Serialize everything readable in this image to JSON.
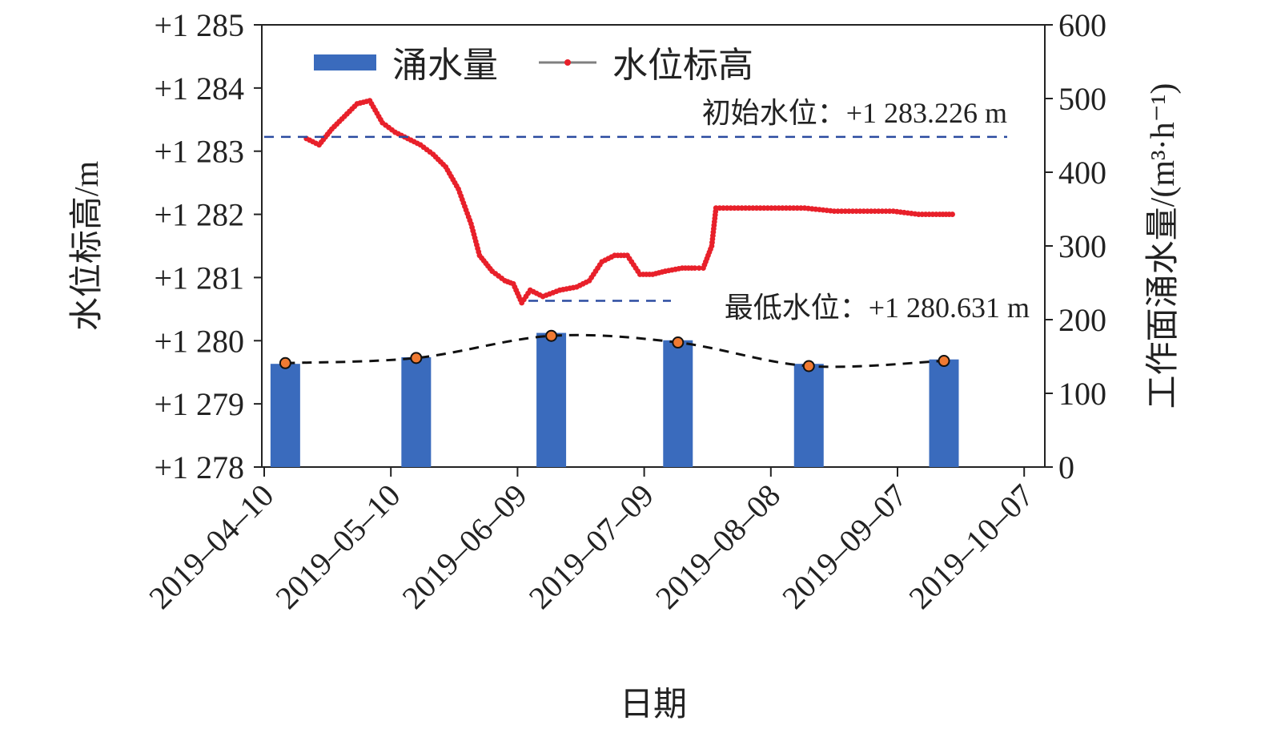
{
  "chart_data": {
    "type": "bar+line",
    "xlabel": "日期",
    "ylabel_left": "水位标高/m",
    "ylabel_right": "工作面涌水量/(m³·h⁻¹)",
    "x_ticks": [
      "2019–04–10",
      "2019–05–10",
      "2019–06–09",
      "2019–07–09",
      "2019–08–08",
      "2019–09–07",
      "2019–10–07"
    ],
    "y_left": {
      "ticks": [
        "+1 278",
        "+1 279",
        "+1 280",
        "+1 281",
        "+1 282",
        "+1 283",
        "+1 284",
        "+1 285"
      ],
      "lim": [
        1278,
        1285
      ]
    },
    "y_right": {
      "ticks": [
        "0",
        "100",
        "200",
        "300",
        "400",
        "500",
        "600"
      ],
      "lim": [
        0,
        600
      ]
    },
    "legend": [
      {
        "name": "涌水量",
        "color": "#3a6bbd"
      },
      {
        "name": "水位标高",
        "color": "#e8202a"
      }
    ],
    "bars": {
      "name": "涌水量",
      "color": "#3a6bbd",
      "x_days": [
        5,
        36,
        68,
        98,
        129,
        161
      ],
      "values": [
        140,
        149,
        182,
        172,
        140,
        146
      ]
    },
    "flow_trend_values": [
      141,
      148,
      178,
      169,
      137,
      144
    ],
    "water_level": {
      "name": "水位标高",
      "color": "#e8202a",
      "points": [
        [
          10,
          1283.2
        ],
        [
          13,
          1283.1
        ],
        [
          16,
          1283.35
        ],
        [
          19,
          1283.55
        ],
        [
          22,
          1283.75
        ],
        [
          25,
          1283.8
        ],
        [
          28,
          1283.45
        ],
        [
          31,
          1283.3
        ],
        [
          34,
          1283.2
        ],
        [
          37,
          1283.1
        ],
        [
          40,
          1282.95
        ],
        [
          43,
          1282.75
        ],
        [
          46,
          1282.4
        ],
        [
          49,
          1281.85
        ],
        [
          51,
          1281.35
        ],
        [
          54,
          1281.1
        ],
        [
          57,
          1280.95
        ],
        [
          59,
          1280.9
        ],
        [
          61,
          1280.6
        ],
        [
          63,
          1280.8
        ],
        [
          66,
          1280.7
        ],
        [
          70,
          1280.8
        ],
        [
          74,
          1280.85
        ],
        [
          77,
          1280.95
        ],
        [
          80,
          1281.25
        ],
        [
          83,
          1281.35
        ],
        [
          86,
          1281.35
        ],
        [
          89,
          1281.05
        ],
        [
          92,
          1281.05
        ],
        [
          95,
          1281.1
        ],
        [
          99,
          1281.15
        ],
        [
          102,
          1281.15
        ],
        [
          104,
          1281.15
        ],
        [
          106,
          1281.5
        ],
        [
          107,
          1282.1
        ],
        [
          114,
          1282.1
        ],
        [
          121,
          1282.1
        ],
        [
          128,
          1282.1
        ],
        [
          135,
          1282.05
        ],
        [
          142,
          1282.05
        ],
        [
          149,
          1282.05
        ],
        [
          155,
          1282.0
        ],
        [
          160,
          1282.0
        ],
        [
          163,
          1282.0
        ]
      ]
    },
    "annotations": [
      {
        "text": "初始水位：+1 283.226 m",
        "value": 1283.226
      },
      {
        "text": "最低水位：+1 280.631 m",
        "value": 1280.631
      }
    ],
    "grid": false
  }
}
